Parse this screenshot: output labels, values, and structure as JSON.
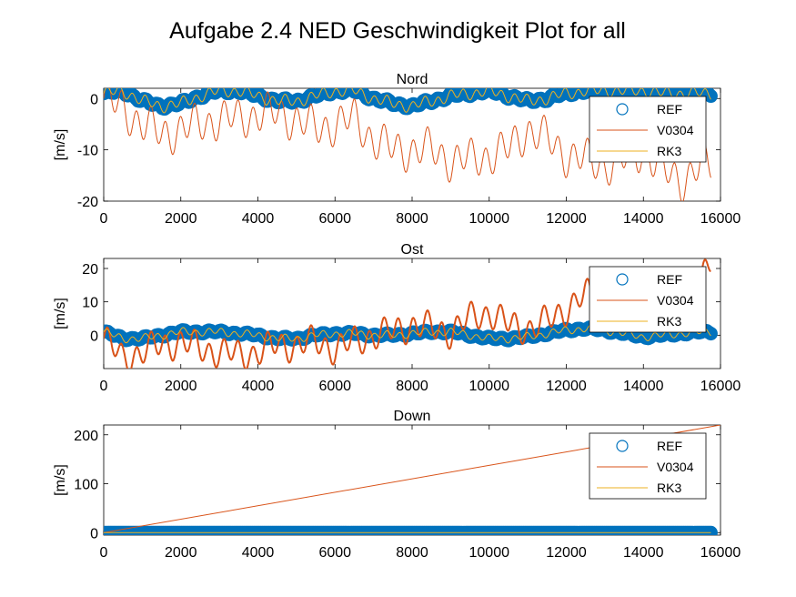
{
  "figure": {
    "title": "Aufgabe 2.4 NED Geschwindigkeit Plot for all"
  },
  "colors": {
    "ref": "#0072BD",
    "v0304": "#D95319",
    "rk3": "#EDB120"
  },
  "chart_data": [
    {
      "type": "line",
      "title": "Nord",
      "ylabel": "[m/s]",
      "xlim": [
        0,
        16000
      ],
      "ylim": [
        -20,
        2
      ],
      "xticks": [
        0,
        2000,
        4000,
        6000,
        8000,
        10000,
        12000,
        14000,
        16000
      ],
      "yticks": [
        -20,
        -10,
        0
      ],
      "legend": {
        "placement": "top-right",
        "entries": [
          "REF",
          "V0304",
          "RK3"
        ]
      },
      "grid": false,
      "series": [
        {
          "name": "REF",
          "style": "markers",
          "x": [
            0,
            500,
            1000,
            1500,
            2000,
            2500,
            3000,
            3500,
            4000,
            4500,
            5000,
            5500,
            6000,
            6500,
            7000,
            7500,
            8000,
            8500,
            9000,
            9500,
            10000,
            10500,
            11000,
            11500,
            12000,
            12500,
            13000,
            13500,
            14000,
            14500,
            15000,
            15500,
            15750
          ],
          "y": [
            1,
            1.5,
            -0.5,
            -1.5,
            -1,
            0.5,
            1.5,
            1.5,
            0.5,
            -0.5,
            -0.5,
            0.5,
            1.5,
            1.5,
            0,
            -1,
            -1.5,
            -0.5,
            0.5,
            1,
            1.5,
            0.5,
            -0.5,
            0,
            1,
            1.5,
            1.5,
            1.5,
            1.5,
            1,
            1,
            1,
            1
          ]
        },
        {
          "name": "V0304",
          "style": "line",
          "x": [
            0,
            500,
            1000,
            1500,
            2000,
            2500,
            3000,
            3500,
            4000,
            4500,
            5000,
            5500,
            6000,
            6500,
            7000,
            7500,
            8000,
            8500,
            9000,
            9500,
            10000,
            10500,
            11000,
            11500,
            12000,
            12500,
            13000,
            13500,
            14000,
            14500,
            15000,
            15500,
            15750
          ],
          "y": [
            0,
            -2,
            -5,
            -7,
            -6,
            -5,
            -4,
            -4,
            -3,
            -3,
            -4,
            -6,
            -5,
            -4,
            -8,
            -10,
            -10,
            -10,
            -12,
            -12,
            -11,
            -10,
            -6,
            -8,
            -11,
            -12,
            -13,
            -12,
            -10,
            -14,
            -16,
            -13,
            -13
          ]
        },
        {
          "name": "RK3",
          "style": "line",
          "x": [
            0,
            500,
            1000,
            1500,
            2000,
            2500,
            3000,
            3500,
            4000,
            4500,
            5000,
            5500,
            6000,
            6500,
            7000,
            7500,
            8000,
            8500,
            9000,
            9500,
            10000,
            10500,
            11000,
            11500,
            12000,
            12500,
            13000,
            13500,
            14000,
            14500,
            15000,
            15500,
            15750
          ],
          "y": [
            1,
            1.5,
            -0.5,
            -1.5,
            -1,
            0.5,
            1.5,
            1.5,
            0.5,
            -0.5,
            -0.5,
            0.5,
            1.5,
            1.5,
            0,
            -1,
            -1.5,
            -0.5,
            0.5,
            1,
            1.5,
            0.5,
            -0.5,
            0,
            1,
            1.5,
            1.5,
            1.5,
            1.5,
            1,
            1,
            1,
            1
          ]
        }
      ]
    },
    {
      "type": "line",
      "title": "Ost",
      "ylabel": "[m/s]",
      "xlim": [
        0,
        16000
      ],
      "ylim": [
        -10,
        23
      ],
      "xticks": [
        0,
        2000,
        4000,
        6000,
        8000,
        10000,
        12000,
        14000,
        16000
      ],
      "yticks": [
        0,
        10,
        20
      ],
      "legend": {
        "placement": "top-right",
        "entries": [
          "REF",
          "V0304",
          "RK3"
        ]
      },
      "grid": false,
      "series": [
        {
          "name": "REF",
          "style": "markers",
          "x": [
            0,
            500,
            1000,
            1500,
            2000,
            2500,
            3000,
            3500,
            4000,
            4500,
            5000,
            5500,
            6000,
            6500,
            7000,
            7500,
            8000,
            8500,
            9000,
            9500,
            10000,
            10500,
            11000,
            11500,
            12000,
            12500,
            13000,
            13500,
            14000,
            14500,
            15000,
            15500,
            15750
          ],
          "y": [
            1,
            -1,
            -1,
            0,
            1,
            1,
            1,
            0.5,
            0,
            -1,
            -1,
            0,
            0.5,
            0.5,
            0,
            0,
            0.5,
            1,
            1,
            0,
            -1,
            -1,
            -0.5,
            0.5,
            1.5,
            2,
            1.5,
            0.5,
            -0.5,
            0,
            0.5,
            1,
            1
          ]
        },
        {
          "name": "V0304",
          "style": "line",
          "x": [
            0,
            500,
            1000,
            1500,
            2000,
            2500,
            3000,
            3500,
            4000,
            4500,
            5000,
            5500,
            6000,
            6500,
            7000,
            7500,
            8000,
            8500,
            9000,
            9500,
            10000,
            10500,
            11000,
            11500,
            12000,
            12500,
            13000,
            13500,
            14000,
            14500,
            15000,
            15500,
            15750
          ],
          "y": [
            -1,
            -7,
            -5,
            -3,
            -2,
            -4,
            -5,
            -6,
            -5,
            -3,
            -3,
            -2,
            -4,
            -2,
            0,
            1,
            3,
            2,
            1,
            5,
            7,
            3,
            2,
            4,
            8,
            12,
            10,
            11,
            12,
            13,
            14,
            15,
            22
          ]
        },
        {
          "name": "RK3",
          "style": "line",
          "x": [
            0,
            500,
            1000,
            1500,
            2000,
            2500,
            3000,
            3500,
            4000,
            4500,
            5000,
            5500,
            6000,
            6500,
            7000,
            7500,
            8000,
            8500,
            9000,
            9500,
            10000,
            10500,
            11000,
            11500,
            12000,
            12500,
            13000,
            13500,
            14000,
            14500,
            15000,
            15500,
            15750
          ],
          "y": [
            1,
            -1,
            -1,
            0,
            1,
            1,
            1,
            0.5,
            0,
            -1,
            -1,
            0,
            0.5,
            0.5,
            0,
            0,
            0.5,
            1,
            1,
            0,
            -1,
            -1,
            -0.5,
            0.5,
            1.5,
            2,
            1.5,
            0.5,
            -0.5,
            0,
            0.5,
            1,
            1
          ]
        }
      ]
    },
    {
      "type": "line",
      "title": "Down",
      "ylabel": "[m/s]",
      "xlim": [
        0,
        16000
      ],
      "ylim": [
        -5,
        220
      ],
      "xticks": [
        0,
        2000,
        4000,
        6000,
        8000,
        10000,
        12000,
        14000,
        16000
      ],
      "yticks": [
        0,
        100,
        200
      ],
      "legend": {
        "placement": "top-right",
        "entries": [
          "REF",
          "V0304",
          "RK3"
        ]
      },
      "grid": false,
      "series": [
        {
          "name": "REF",
          "style": "markers",
          "x": [
            0,
            500,
            1000,
            1500,
            2000,
            2500,
            3000,
            3500,
            4000,
            4500,
            5000,
            5500,
            6000,
            6500,
            7000,
            7500,
            8000,
            8500,
            9000,
            9500,
            10000,
            10500,
            11000,
            11500,
            12000,
            12500,
            13000,
            13500,
            14000,
            14500,
            15000,
            15500,
            15750
          ],
          "y": [
            0,
            0,
            0,
            0,
            0,
            0,
            0,
            0,
            0,
            0,
            0,
            0,
            0,
            0,
            0,
            0,
            0,
            0,
            0,
            0,
            0,
            0,
            0,
            0,
            0,
            0,
            0,
            0,
            0,
            0,
            0,
            0,
            0
          ]
        },
        {
          "name": "V0304",
          "style": "line",
          "x": [
            0,
            16000
          ],
          "y": [
            0,
            220
          ]
        },
        {
          "name": "RK3",
          "style": "line",
          "x": [
            0,
            15750
          ],
          "y": [
            0,
            0
          ]
        }
      ]
    }
  ]
}
